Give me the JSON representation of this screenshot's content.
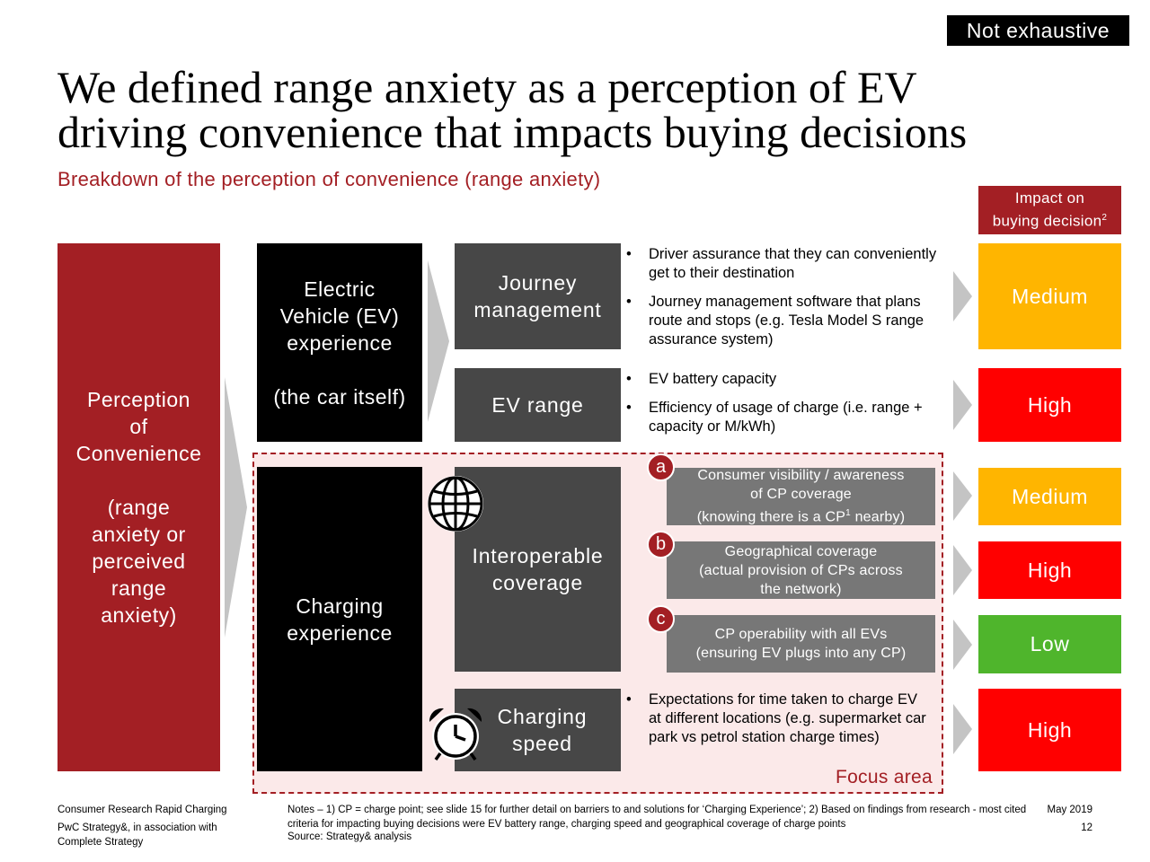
{
  "tag": "Not exhaustive",
  "title_line1": "We defined range anxiety as a perception of EV",
  "title_line2": "driving convenience that impacts buying decisions",
  "subtitle": "Breakdown of the perception of convenience (range anxiety)",
  "impact_header": {
    "text": "Impact on\nbuying decision",
    "sup": "2"
  },
  "perception": "Perception\nof\nConvenience\n\n(range\nanxiety or\nperceived\nrange\nanxiety)",
  "ev_experience": "Electric\nVehicle (EV)\nexperience\n\n(the car itself)",
  "charging_experience": "Charging\nexperience",
  "journey_management": {
    "label": "Journey\nmanagement",
    "bullets": [
      "Driver assurance that they can conveniently get to their destination",
      "Journey management software that plans route and stops (e.g. Tesla Model S range assurance system)"
    ]
  },
  "ev_range": {
    "label": "EV range",
    "bullets": [
      "EV battery capacity",
      "Efficiency of usage of charge (i.e. range + capacity or M/kWh)"
    ]
  },
  "interoperable_coverage": {
    "label": "Interoperable\ncoverage",
    "items": [
      {
        "badge": "a",
        "text_main": "Consumer visibility / awareness\nof CP coverage\n(knowing there is a CP",
        "sup": "1",
        "text_tail": " nearby)"
      },
      {
        "badge": "b",
        "text_main": "Geographical coverage\n(actual provision of CPs across\nthe network)",
        "sup": "",
        "text_tail": ""
      },
      {
        "badge": "c",
        "text_main": "CP operability with all EVs\n(ensuring EV plugs into any CP)",
        "sup": "",
        "text_tail": ""
      }
    ]
  },
  "charging_speed": {
    "label": "Charging\nspeed",
    "bullets": [
      "Expectations for time taken to charge EV at different locations (e.g. supermarket car park vs petrol station charge times)"
    ]
  },
  "focus_label": "Focus area",
  "impacts": [
    {
      "label": "Medium",
      "color": "#ffb500"
    },
    {
      "label": "High",
      "color": "#ff0000"
    },
    {
      "label": "Medium",
      "color": "#ffb500"
    },
    {
      "label": "High",
      "color": "#ff0000"
    },
    {
      "label": "Low",
      "color": "#4fb52c"
    },
    {
      "label": "High",
      "color": "#ff0000"
    }
  ],
  "icons": {
    "coverage": "globe-icon",
    "speed": "alarm-clock-icon"
  },
  "footer": {
    "project": "Consumer Research Rapid Charging",
    "company": "PwC Strategy&, in association with\nComplete Strategy",
    "notes": "Notes – 1) CP = charge point; see slide 15 for further detail on barriers to and solutions for ‘Charging Experience’; 2) Based on findings from research - most cited criteria for impacting buying decisions were EV battery range, charging speed and geographical coverage of charge points",
    "source": "Source: Strategy& analysis",
    "date": "May 2019",
    "page": "12"
  },
  "colors": {
    "brand_red": "#a31f24",
    "dark_grey": "#474747",
    "mid_grey": "#777777",
    "chevron_grey": "#c4c4c4"
  }
}
